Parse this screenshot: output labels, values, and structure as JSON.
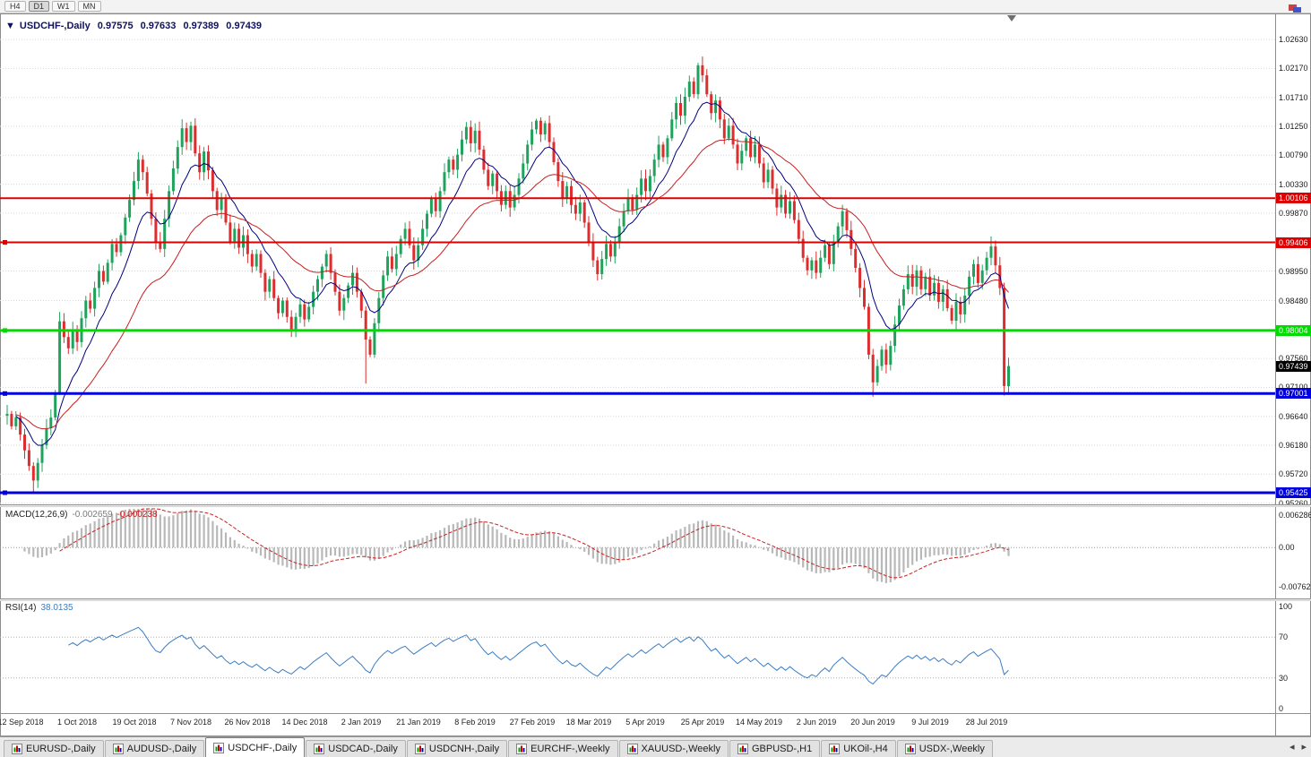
{
  "toolbar": {
    "timeframes": [
      {
        "label": "H4",
        "active": false
      },
      {
        "label": "D1",
        "active": true
      },
      {
        "label": "W1",
        "active": false
      },
      {
        "label": "MN",
        "active": false
      }
    ]
  },
  "window_controls": {
    "chart_icon_colors": [
      "#cc4040",
      "#4052cc"
    ]
  },
  "icons": {
    "collapse_arrow": "▼"
  },
  "chart_data": {
    "type": "candlestick",
    "symbol": "USDCHF-,Daily",
    "ohlc": {
      "open": "0.97575",
      "high": "0.97633",
      "low": "0.97389",
      "close": "0.97439"
    },
    "price_axis": {
      "top_price": 1.0303,
      "bottom_price": 0.9524,
      "labels": [
        {
          "v": 1.0263,
          "t": "1.02630"
        },
        {
          "v": 1.0217,
          "t": "1.02170"
        },
        {
          "v": 1.0171,
          "t": "1.01710"
        },
        {
          "v": 1.0125,
          "t": "1.01250"
        },
        {
          "v": 1.0079,
          "t": "1.00790"
        },
        {
          "v": 1.0033,
          "t": "1.00330"
        },
        {
          "v": 0.9987,
          "t": "0.99870"
        },
        {
          "v": 0.9941,
          "t": ""
        },
        {
          "v": 0.9895,
          "t": "0.98950"
        },
        {
          "v": 0.9848,
          "t": "0.98480"
        },
        {
          "v": 0.9802,
          "t": ""
        },
        {
          "v": 0.9756,
          "t": "0.97560"
        },
        {
          "v": 0.971,
          "t": "0.97100"
        },
        {
          "v": 0.9664,
          "t": "0.96640"
        },
        {
          "v": 0.9618,
          "t": "0.96180"
        },
        {
          "v": 0.9572,
          "t": "0.95720"
        },
        {
          "v": 0.9526,
          "t": "0.95260"
        }
      ]
    },
    "hlines": [
      {
        "price": 1.00106,
        "label": "1.00106",
        "color": "#dd0000",
        "width": 2,
        "handle": false
      },
      {
        "price": 0.99406,
        "label": "0.99406",
        "color": "#dd0000",
        "width": 2,
        "handle": true
      },
      {
        "price": 0.98004,
        "label": "0.98004",
        "color": "#00dc00",
        "width": 3,
        "handle": true
      },
      {
        "price": 0.97001,
        "label": "0.97001",
        "color": "#0000dc",
        "width": 3,
        "handle": true
      },
      {
        "price": 0.95425,
        "label": "0.95425",
        "color": "#0000dc",
        "width": 3,
        "handle": true
      }
    ],
    "current_price": {
      "value": 0.97439,
      "label": "0.97439",
      "badge_color": "#000000"
    },
    "first_open": 0.9665,
    "closes": [
      0.9668,
      0.9648,
      0.9662,
      0.9635,
      0.961,
      0.9585,
      0.9562,
      0.959,
      0.9618,
      0.9645,
      0.9662,
      0.97,
      0.9815,
      0.979,
      0.9772,
      0.98,
      0.9782,
      0.982,
      0.9848,
      0.9835,
      0.9868,
      0.9895,
      0.9878,
      0.9908,
      0.9938,
      0.9925,
      0.9952,
      0.998,
      1.0008,
      1.0038,
      1.0072,
      1.0052,
      1.0018,
      0.9978,
      0.9942,
      0.993,
      0.9978,
      1.0022,
      1.0058,
      1.0092,
      1.0122,
      1.01,
      1.0126,
      1.0082,
      1.0052,
      1.0085,
      1.0055,
      1.0022,
      0.9992,
      1.0012,
      0.9972,
      0.9942,
      0.9962,
      0.9932,
      0.9952,
      0.9922,
      0.9902,
      0.9922,
      0.9892,
      0.9862,
      0.9882,
      0.9852,
      0.9828,
      0.9848,
      0.9822,
      0.9802,
      0.9822,
      0.9842,
      0.9818,
      0.9838,
      0.9862,
      0.9882,
      0.9902,
      0.9922,
      0.9892,
      0.9862,
      0.9832,
      0.9852,
      0.9872,
      0.9892,
      0.9862,
      0.9832,
      0.9786,
      0.9762,
      0.9812,
      0.9852,
      0.9888,
      0.9918,
      0.9898,
      0.9922,
      0.9946,
      0.9962,
      0.9936,
      0.9912,
      0.9936,
      0.9962,
      0.9986,
      1.001,
      0.999,
      1.0022,
      1.0052,
      1.0072,
      1.0056,
      1.008,
      1.0104,
      1.0124,
      1.0098,
      1.0118,
      1.0088,
      1.0056,
      1.003,
      1.005,
      1.0022,
      1.0,
      1.0022,
      0.9996,
      1.0016,
      1.0042,
      1.0066,
      1.0096,
      1.012,
      1.0134,
      1.0112,
      1.013,
      1.01,
      1.0068,
      1.0038,
      1.001,
      1.003,
      1.0,
      0.9986,
      1.0004,
      0.9972,
      0.9942,
      0.9912,
      0.989,
      0.9914,
      0.9938,
      0.9918,
      0.9942,
      0.9966,
      0.999,
      1.0012,
      0.9992,
      1.0016,
      1.0042,
      1.0022,
      1.0046,
      1.0072,
      1.0096,
      1.0076,
      1.0106,
      1.0136,
      1.0162,
      1.0142,
      1.0172,
      1.0196,
      1.0176,
      1.0222,
      1.0206,
      1.0176,
      1.0146,
      1.0166,
      1.0136,
      1.0106,
      1.0126,
      1.0096,
      1.0066,
      1.0086,
      1.0106,
      1.0076,
      1.0096,
      1.0066,
      1.0036,
      1.0056,
      1.0026,
      0.9996,
      1.0016,
      0.9986,
      1.0006,
      0.9976,
      0.9946,
      0.9916,
      0.9896,
      0.9912,
      0.9892,
      0.9916,
      0.9936,
      0.9906,
      0.9942,
      0.9966,
      0.999,
      0.996,
      0.993,
      0.99,
      0.9868,
      0.9838,
      0.9762,
      0.9718,
      0.9744,
      0.977,
      0.9746,
      0.9776,
      0.981,
      0.984,
      0.9866,
      0.989,
      0.987,
      0.9896,
      0.9866,
      0.9886,
      0.9856,
      0.9876,
      0.9846,
      0.9866,
      0.9836,
      0.9816,
      0.9846,
      0.9826,
      0.9856,
      0.9886,
      0.9906,
      0.9876,
      0.9896,
      0.9916,
      0.9934,
      0.9904,
      0.9868,
      0.9712,
      0.97439
    ],
    "extremes": {
      "6": {
        "low": 0.9542
      },
      "12": {
        "low": 0.9698
      },
      "82": {
        "low": 0.9716
      },
      "121": {
        "high": 1.0137
      },
      "135": {
        "low": 0.988
      },
      "158": {
        "high": 1.0226
      },
      "198": {
        "low": 0.9695
      },
      "225": {
        "high": 0.995
      },
      "228": {
        "low": 0.9697
      }
    },
    "x_labels": [
      {
        "i": 3,
        "t": "12 Sep 2018"
      },
      {
        "i": 16,
        "t": "1 Oct 2018"
      },
      {
        "i": 29,
        "t": "19 Oct 2018"
      },
      {
        "i": 42,
        "t": "7 Nov 2018"
      },
      {
        "i": 55,
        "t": "26 Nov 2018"
      },
      {
        "i": 68,
        "t": "14 Dec 2018"
      },
      {
        "i": 81,
        "t": "2 Jan 2019"
      },
      {
        "i": 94,
        "t": "21 Jan 2019"
      },
      {
        "i": 107,
        "t": "8 Feb 2019"
      },
      {
        "i": 120,
        "t": "27 Feb 2019"
      },
      {
        "i": 133,
        "t": "18 Mar 2019"
      },
      {
        "i": 146,
        "t": "5 Apr 2019"
      },
      {
        "i": 159,
        "t": "25 Apr 2019"
      },
      {
        "i": 172,
        "t": "14 May 2019"
      },
      {
        "i": 185,
        "t": "2 Jun 2019"
      },
      {
        "i": 198,
        "t": "20 Jun 2019"
      },
      {
        "i": 211,
        "t": "9 Jul 2019"
      },
      {
        "i": 224,
        "t": "28 Jul 2019"
      }
    ],
    "moving_averages": [
      {
        "period": 10,
        "color": "#000080"
      },
      {
        "period": 30,
        "color": "#c81e1e"
      }
    ],
    "macd": {
      "title": "MACD(12,26,9)",
      "value_main": "-0.002659",
      "value_signal": "-0.000238",
      "fast": 12,
      "slow": 26,
      "signal": 9,
      "axis_labels": [
        {
          "v": 0.006286,
          "t": "0.006286"
        },
        {
          "v": 0,
          "t": "0.00"
        },
        {
          "v": -0.00762,
          "t": "-0.00762"
        }
      ],
      "range_top": 0.0075,
      "range_bottom": -0.0095,
      "hist_color": "#b8b8b8",
      "signal_color": "#cc2020"
    },
    "rsi": {
      "title": "RSI(14)",
      "value": "38.0135",
      "period": 14,
      "levels": [
        70,
        30
      ],
      "axis_labels": [
        {
          "v": 100,
          "t": "100"
        },
        {
          "v": 70,
          "t": "70"
        },
        {
          "v": 30,
          "t": "30"
        },
        {
          "v": 0,
          "t": "0"
        }
      ],
      "line_color": "#3b7dc4"
    },
    "colors": {
      "bull": "#1fa35c",
      "bear": "#dc2e2e",
      "grid": "#d6d6d6",
      "background": "#ffffff",
      "scale_text": "#1b1b1b"
    }
  },
  "tabs": {
    "items": [
      {
        "label": "EURUSD-,Daily",
        "active": false
      },
      {
        "label": "AUDUSD-,Daily",
        "active": false
      },
      {
        "label": "USDCHF-,Daily",
        "active": true
      },
      {
        "label": "USDCAD-,Daily",
        "active": false
      },
      {
        "label": "USDCNH-,Daily",
        "active": false
      },
      {
        "label": "EURCHF-,Weekly",
        "active": false
      },
      {
        "label": "XAUUSD-,Weekly",
        "active": false
      },
      {
        "label": "GBPUSD-,H1",
        "active": false
      },
      {
        "label": "UKOil-,H4",
        "active": false
      },
      {
        "label": "USDX-,Weekly",
        "active": false
      }
    ],
    "scroll_left": "◂",
    "scroll_right": "▸"
  }
}
